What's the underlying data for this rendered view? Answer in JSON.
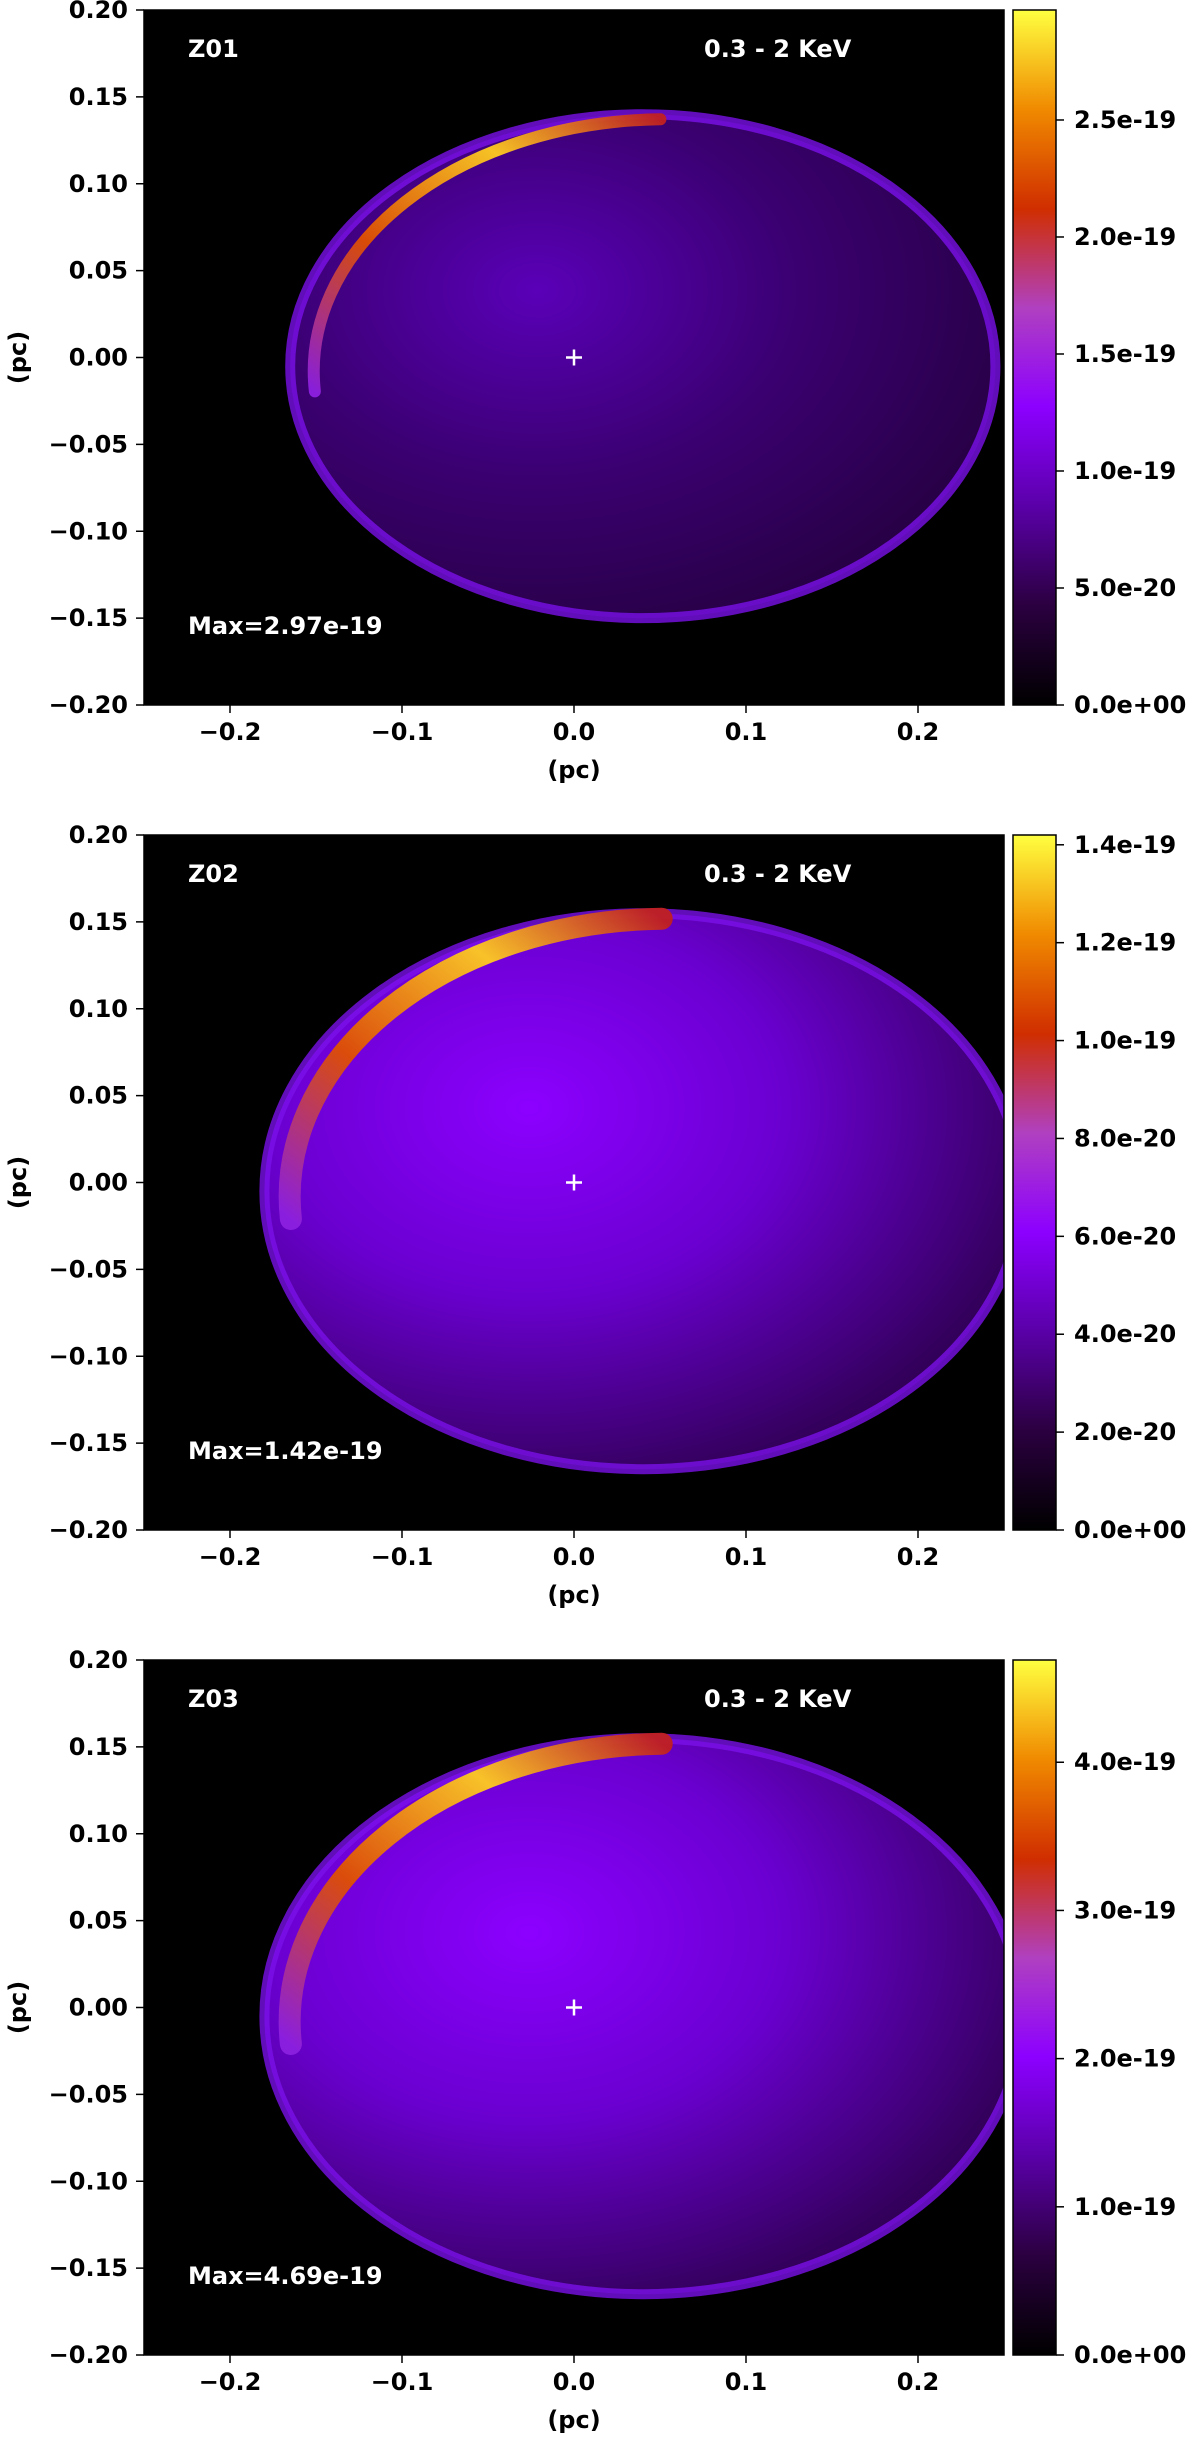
{
  "chart_data": [
    {
      "type": "heatmap",
      "panel_label": "Z01",
      "band_label": "0.3 - 2 KeV",
      "max_label": "Max=2.97e-19",
      "xlabel": "(pc)",
      "ylabel": "(pc)",
      "xlim": [
        -0.25,
        0.25
      ],
      "ylim": [
        -0.2,
        0.2
      ],
      "xticks": [
        -0.2,
        -0.1,
        0.0,
        0.1,
        0.2
      ],
      "xtick_labels": [
        "−0.2",
        "−0.1",
        "0.0",
        "0.1",
        "0.2"
      ],
      "yticks": [
        0.2,
        0.15,
        0.1,
        0.05,
        0.0,
        -0.05,
        -0.1,
        -0.15,
        -0.2
      ],
      "ytick_labels": [
        "0.20",
        "0.15",
        "0.10",
        "0.05",
        "0.00",
        "−0.05",
        "−0.10",
        "−0.15",
        "−0.20"
      ],
      "center_marker": [
        0.0,
        0.0
      ],
      "colorbar": {
        "min": 0,
        "max": 2.97e-19,
        "ticks": [
          0,
          5e-20,
          1e-19,
          1.5e-19,
          2e-19,
          2.5e-19
        ],
        "tick_labels": [
          "0.0e+00",
          "5.0e-20",
          "1.0e-19",
          "1.5e-19",
          "2.0e-19",
          "2.5e-19"
        ]
      }
    },
    {
      "type": "heatmap",
      "panel_label": "Z02",
      "band_label": "0.3 - 2 KeV",
      "max_label": "Max=1.42e-19",
      "xlabel": "(pc)",
      "ylabel": "(pc)",
      "xlim": [
        -0.25,
        0.25
      ],
      "ylim": [
        -0.2,
        0.2
      ],
      "xticks": [
        -0.2,
        -0.1,
        0.0,
        0.1,
        0.2
      ],
      "xtick_labels": [
        "−0.2",
        "−0.1",
        "0.0",
        "0.1",
        "0.2"
      ],
      "yticks": [
        0.2,
        0.15,
        0.1,
        0.05,
        0.0,
        -0.05,
        -0.1,
        -0.15,
        -0.2
      ],
      "ytick_labels": [
        "0.20",
        "0.15",
        "0.10",
        "0.05",
        "0.00",
        "−0.05",
        "−0.10",
        "−0.15",
        "−0.20"
      ],
      "center_marker": [
        0.0,
        0.0
      ],
      "colorbar": {
        "min": 0,
        "max": 1.42e-19,
        "ticks": [
          0,
          2e-20,
          4e-20,
          6e-20,
          8e-20,
          1e-19,
          1.2e-19,
          1.4e-19
        ],
        "tick_labels": [
          "0.0e+00",
          "2.0e-20",
          "4.0e-20",
          "6.0e-20",
          "8.0e-20",
          "1.0e-19",
          "1.2e-19",
          "1.4e-19"
        ]
      }
    },
    {
      "type": "heatmap",
      "panel_label": "Z03",
      "band_label": "0.3 - 2 KeV",
      "max_label": "Max=4.69e-19",
      "xlabel": "(pc)",
      "ylabel": "(pc)",
      "xlim": [
        -0.25,
        0.25
      ],
      "ylim": [
        -0.2,
        0.2
      ],
      "xticks": [
        -0.2,
        -0.1,
        0.0,
        0.1,
        0.2
      ],
      "xtick_labels": [
        "−0.2",
        "−0.1",
        "0.0",
        "0.1",
        "0.2"
      ],
      "yticks": [
        0.2,
        0.15,
        0.1,
        0.05,
        0.0,
        -0.05,
        -0.1,
        -0.15,
        -0.2
      ],
      "ytick_labels": [
        "0.20",
        "0.15",
        "0.10",
        "0.05",
        "0.00",
        "−0.05",
        "−0.10",
        "−0.15",
        "−0.20"
      ],
      "center_marker": [
        0.0,
        0.0
      ],
      "colorbar": {
        "min": 0,
        "max": 4.69e-19,
        "ticks": [
          0,
          1e-19,
          2e-19,
          3e-19,
          4e-19
        ],
        "tick_labels": [
          "0.0e+00",
          "1.0e-19",
          "2.0e-19",
          "3.0e-19",
          "4.0e-19"
        ]
      }
    }
  ],
  "colormap": [
    "#000000",
    "#2b0040",
    "#5a00a8",
    "#8c00ff",
    "#b040c0",
    "#d02e00",
    "#f08a00",
    "#ffff40"
  ]
}
